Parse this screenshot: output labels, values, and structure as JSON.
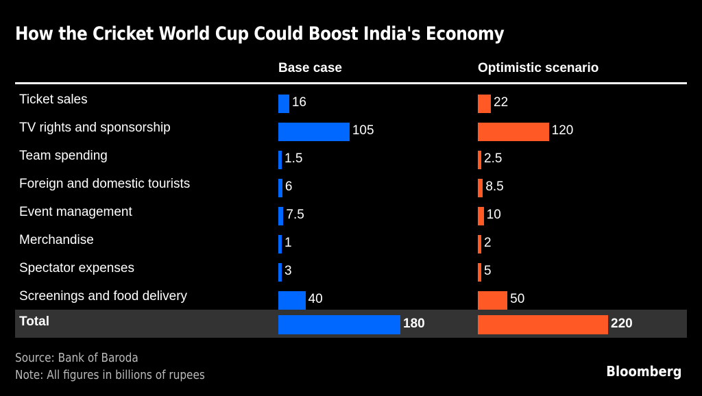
{
  "chart_data": {
    "type": "table",
    "title": "How the Cricket World Cup Could Boost India's Economy",
    "columns": [
      "Base case",
      "Optimistic scenario"
    ],
    "categories": [
      "Ticket sales",
      "TV rights and sponsorship",
      "Team spending",
      "Foreign and domestic tourists",
      "Event management",
      "Merchandise",
      "Spectator expenses",
      "Screenings and food delivery"
    ],
    "series": [
      {
        "name": "Base case",
        "color": "#0068ff",
        "values": [
          16,
          105,
          1.5,
          6,
          7.5,
          1,
          3,
          40
        ],
        "labels": [
          "16",
          "105",
          "1.5",
          "6",
          "7.5",
          "1",
          "3",
          "40"
        ],
        "total": 180,
        "total_label": "180"
      },
      {
        "name": "Optimistic scenario",
        "color": "#ff5a25",
        "values": [
          22,
          120,
          2.5,
          8.5,
          10,
          2,
          5,
          50
        ],
        "labels": [
          "22",
          "120",
          "2.5",
          "8.5",
          "10",
          "2",
          "5",
          "50"
        ],
        "total": 220,
        "total_label": "220"
      }
    ],
    "total_label": "Total",
    "source": "Source: Bank of Baroda",
    "note": "Note: All figures in billions of rupees",
    "brand": "Bloomberg"
  }
}
